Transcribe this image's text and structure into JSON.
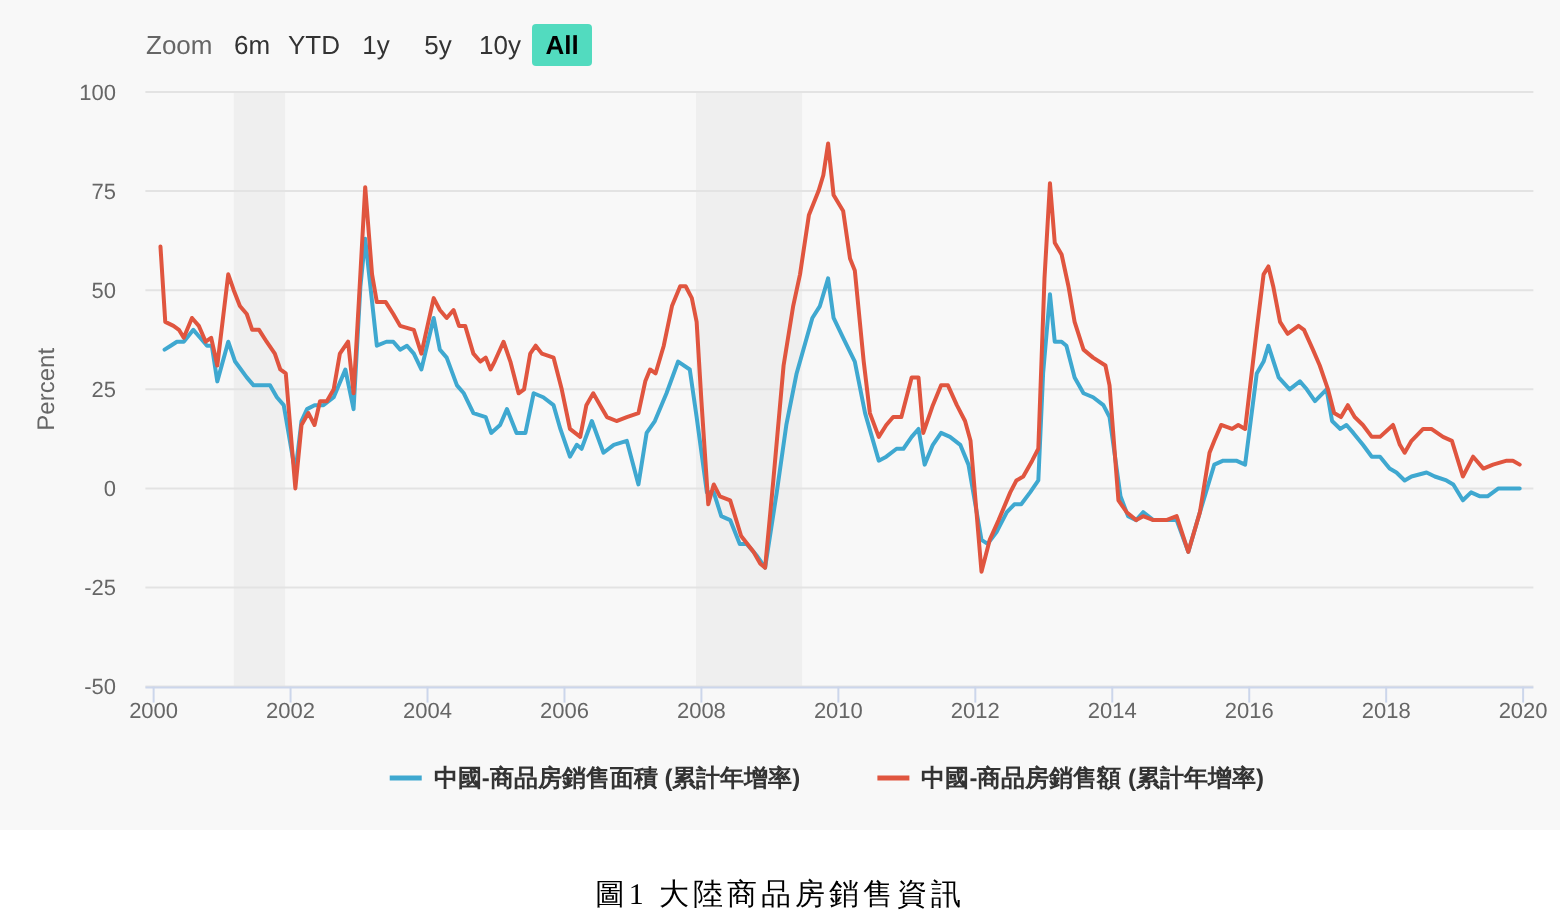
{
  "chart_data": {
    "type": "line",
    "title": "圖1 大陸商品房銷售資訊",
    "annotations": [
      "Zoom",
      "6m",
      "YTD",
      "1y",
      "5y",
      "10y",
      "All"
    ],
    "ylabel": "Percent",
    "xlim": [
      1999.88,
      2020.15
    ],
    "xticks": [
      2000,
      2002,
      2004,
      2006,
      2008,
      2010,
      2012,
      2014,
      2016,
      2018,
      2020
    ],
    "ylim": [
      -50,
      100
    ],
    "yticks": [
      -50,
      -25,
      0,
      25,
      50,
      75,
      100
    ],
    "grid": "y",
    "legend": "bottom",
    "bands": [
      {
        "axis": "x",
        "from": 2001.17,
        "to": 2001.92,
        "color": "#efefef"
      },
      {
        "axis": "x",
        "from": 2007.92,
        "to": 2009.47,
        "color": "#efefef"
      }
    ],
    "series": [
      {
        "name": "中國-商品房銷售面積 (累計年增率)",
        "color": "#3fa8d0",
        "x": [
          2000.16,
          2000.25,
          2000.34,
          2000.44,
          2000.58,
          2000.68,
          2000.78,
          2000.85,
          2000.93,
          2001.09,
          2001.19,
          2001.36,
          2001.46,
          2001.56,
          2001.7,
          2001.8,
          2001.9,
          2002.07,
          2002.16,
          2002.24,
          2002.35,
          2002.48,
          2002.63,
          2002.8,
          2002.92,
          2003.02,
          2003.09,
          2003.26,
          2003.4,
          2003.5,
          2003.6,
          2003.7,
          2003.8,
          2003.91,
          2004.09,
          2004.18,
          2004.28,
          2004.43,
          2004.53,
          2004.67,
          2004.85,
          2004.93,
          2005.06,
          2005.16,
          2005.3,
          2005.43,
          2005.55,
          2005.69,
          2005.84,
          2005.94,
          2006.08,
          2006.18,
          2006.25,
          2006.4,
          2006.57,
          2006.72,
          2006.91,
          2007.08,
          2007.2,
          2007.32,
          2007.49,
          2007.66,
          2007.83,
          2007.93,
          2008.08,
          2008.18,
          2008.29,
          2008.42,
          2008.56,
          2008.66,
          2008.81,
          2008.93,
          2009.1,
          2009.24,
          2009.39,
          2009.62,
          2009.73,
          2009.85,
          2009.93,
          2010.07,
          2010.24,
          2010.39,
          2010.59,
          2010.7,
          2010.85,
          2010.95,
          2011.07,
          2011.17,
          2011.26,
          2011.38,
          2011.5,
          2011.63,
          2011.78,
          2011.9,
          2012.09,
          2012.18,
          2012.31,
          2012.46,
          2012.57,
          2012.67,
          2012.8,
          2012.92,
          2012.99,
          2013.09,
          2013.16,
          2013.26,
          2013.33,
          2013.45,
          2013.58,
          2013.72,
          2013.87,
          2013.96,
          2014.12,
          2014.23,
          2014.35,
          2014.45,
          2014.6,
          2014.79,
          2014.94,
          2015.11,
          2015.28,
          2015.42,
          2015.49,
          2015.62,
          2015.81,
          2015.94,
          2016.11,
          2016.21,
          2016.28,
          2016.43,
          2016.59,
          2016.74,
          2016.84,
          2016.96,
          2017.13,
          2017.21,
          2017.33,
          2017.42,
          2017.52,
          2017.66,
          2017.79,
          2017.91,
          2018.05,
          2018.15,
          2018.27,
          2018.37,
          2018.59,
          2018.71,
          2018.88,
          2018.98,
          2019.12,
          2019.24,
          2019.37,
          2019.48,
          2019.64,
          2019.8,
          2019.95
        ],
        "values": [
          35,
          36,
          37,
          37,
          40,
          38,
          36,
          36,
          27,
          37,
          32,
          28,
          26,
          26,
          26,
          23,
          21,
          4,
          17,
          20,
          21,
          21,
          23,
          30,
          20,
          51,
          63,
          36,
          37,
          37,
          35,
          36,
          34,
          30,
          43,
          35,
          33,
          26,
          24,
          19,
          18,
          14,
          16,
          20,
          14,
          14,
          24,
          23,
          21,
          15,
          8,
          11,
          10,
          17,
          9,
          11,
          12,
          1,
          14,
          17,
          24,
          32,
          30,
          18,
          -1,
          -1,
          -7,
          -8,
          -14,
          -14,
          -17,
          -20,
          -1,
          16,
          29,
          43,
          46,
          53,
          43,
          38,
          32,
          19,
          7,
          8,
          10,
          10,
          13,
          15,
          6,
          11,
          14,
          13,
          11,
          6,
          -13,
          -14,
          -11,
          -6,
          -4,
          -4,
          -1,
          2,
          29,
          49,
          37,
          37,
          36,
          28,
          24,
          23,
          21,
          18,
          -2,
          -7,
          -8,
          -6,
          -8,
          -8,
          -8,
          -16,
          -6,
          2,
          6,
          7,
          7,
          6,
          29,
          32,
          36,
          28,
          25,
          27,
          25,
          22,
          25,
          17,
          15,
          16,
          14,
          11,
          8,
          8,
          5,
          4,
          2,
          3,
          4,
          3,
          2,
          1,
          -3,
          -1,
          -2,
          -2,
          0,
          0,
          0
        ]
      },
      {
        "name": "中國-商品房銷售額 (累計年增率)",
        "color": "#e0553f",
        "x": [
          2000.1,
          2000.17,
          2000.29,
          2000.37,
          2000.44,
          2000.56,
          2000.66,
          2000.76,
          2000.84,
          2000.93,
          2001.09,
          2001.17,
          2001.26,
          2001.36,
          2001.44,
          2001.54,
          2001.65,
          2001.77,
          2001.85,
          2001.93,
          2002.07,
          2002.16,
          2002.26,
          2002.35,
          2002.43,
          2002.53,
          2002.63,
          2002.72,
          2002.84,
          2002.92,
          2003.0,
          2003.09,
          2003.19,
          2003.26,
          2003.39,
          2003.5,
          2003.6,
          2003.8,
          2003.91,
          2004.09,
          2004.18,
          2004.28,
          2004.38,
          2004.46,
          2004.55,
          2004.67,
          2004.77,
          2004.85,
          2004.92,
          2004.98,
          2005.11,
          2005.21,
          2005.33,
          2005.41,
          2005.5,
          2005.58,
          2005.67,
          2005.84,
          2005.96,
          2006.08,
          2006.23,
          2006.32,
          2006.42,
          2006.52,
          2006.62,
          2006.76,
          2006.91,
          2007.08,
          2007.18,
          2007.25,
          2007.33,
          2007.45,
          2007.57,
          2007.69,
          2007.77,
          2007.86,
          2007.93,
          2008.0,
          2008.1,
          2008.18,
          2008.27,
          2008.42,
          2008.58,
          2008.76,
          2008.86,
          2008.93,
          2009.05,
          2009.2,
          2009.34,
          2009.44,
          2009.57,
          2009.71,
          2009.78,
          2009.85,
          2009.93,
          2010.07,
          2010.17,
          2010.24,
          2010.37,
          2010.46,
          2010.59,
          2010.7,
          2010.8,
          2010.92,
          2011.07,
          2011.17,
          2011.24,
          2011.38,
          2011.5,
          2011.6,
          2011.73,
          2011.85,
          2011.93,
          2012.09,
          2012.21,
          2012.34,
          2012.51,
          2012.6,
          2012.7,
          2012.83,
          2012.92,
          2013.01,
          2013.09,
          2013.16,
          2013.26,
          2013.36,
          2013.45,
          2013.58,
          2013.72,
          2013.9,
          2013.96,
          2014.09,
          2014.21,
          2014.35,
          2014.45,
          2014.6,
          2014.79,
          2014.94,
          2015.11,
          2015.28,
          2015.42,
          2015.49,
          2015.59,
          2015.75,
          2015.84,
          2015.94,
          2016.11,
          2016.21,
          2016.28,
          2016.35,
          2016.45,
          2016.56,
          2016.72,
          2016.8,
          2016.93,
          2017.03,
          2017.15,
          2017.24,
          2017.34,
          2017.44,
          2017.54,
          2017.66,
          2017.79,
          2017.91,
          2018.1,
          2018.2,
          2018.27,
          2018.37,
          2018.54,
          2018.66,
          2018.83,
          2018.96,
          2019.12,
          2019.27,
          2019.42,
          2019.56,
          2019.76,
          2019.85,
          2019.95
        ],
        "values": [
          61,
          42,
          41,
          40,
          38,
          43,
          41,
          37,
          38,
          31,
          54,
          50,
          46,
          44,
          40,
          40,
          37,
          34,
          30,
          29,
          0,
          16,
          19,
          16,
          22,
          22,
          25,
          34,
          37,
          24,
          48,
          76,
          54,
          47,
          47,
          44,
          41,
          40,
          34,
          48,
          45,
          43,
          45,
          41,
          41,
          34,
          32,
          33,
          30,
          32,
          37,
          32,
          24,
          25,
          34,
          36,
          34,
          33,
          25,
          15,
          13,
          21,
          24,
          21,
          18,
          17,
          18,
          19,
          27,
          30,
          29,
          36,
          46,
          51,
          51,
          48,
          42,
          22,
          -4,
          1,
          -2,
          -3,
          -12,
          -16,
          -19,
          -20,
          2,
          31,
          46,
          54,
          69,
          75,
          79,
          87,
          74,
          70,
          58,
          55,
          32,
          19,
          13,
          16,
          18,
          18,
          28,
          28,
          14,
          21,
          26,
          26,
          21,
          17,
          12,
          -21,
          -13,
          -8,
          -1,
          2,
          3,
          7,
          10,
          53,
          77,
          62,
          59,
          51,
          42,
          35,
          33,
          31,
          26,
          -3,
          -6,
          -8,
          -7,
          -8,
          -8,
          -7,
          -16,
          -6,
          9,
          12,
          16,
          15,
          16,
          15,
          40,
          54,
          56,
          51,
          42,
          39,
          41,
          40,
          35,
          31,
          25,
          19,
          18,
          21,
          18,
          16,
          13,
          13,
          16,
          11,
          9,
          12,
          15,
          15,
          13,
          12,
          3,
          8,
          5,
          6,
          7,
          7,
          6
        ]
      }
    ]
  }
}
